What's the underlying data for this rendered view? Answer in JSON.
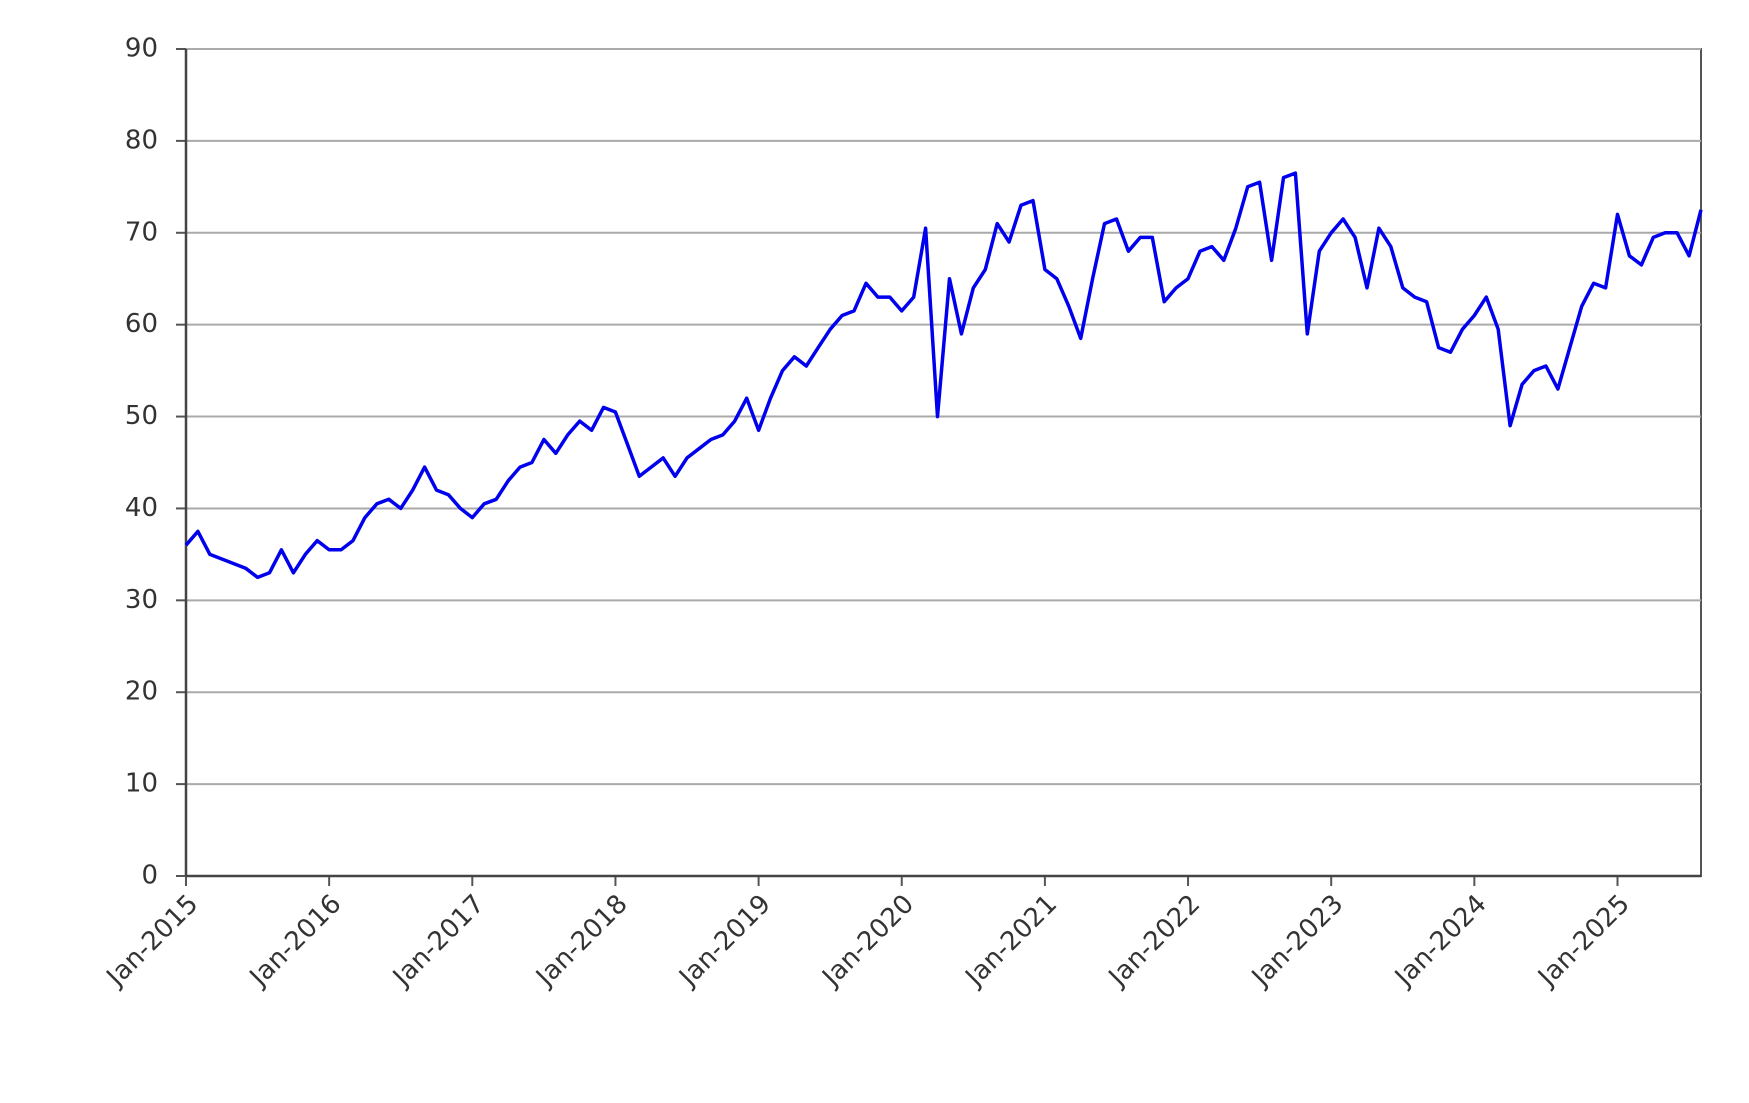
{
  "chart_data": {
    "type": "line",
    "color": "#0000ee",
    "grid": true,
    "x": [
      "2015-01",
      "2015-02",
      "2015-03",
      "2015-04",
      "2015-05",
      "2015-06",
      "2015-07",
      "2015-08",
      "2015-09",
      "2015-10",
      "2015-11",
      "2015-12",
      "2016-01",
      "2016-02",
      "2016-03",
      "2016-04",
      "2016-05",
      "2016-06",
      "2016-07",
      "2016-08",
      "2016-09",
      "2016-10",
      "2016-11",
      "2016-12",
      "2017-01",
      "2017-02",
      "2017-03",
      "2017-04",
      "2017-05",
      "2017-06",
      "2017-07",
      "2017-08",
      "2017-09",
      "2017-10",
      "2017-11",
      "2017-12",
      "2018-01",
      "2018-02",
      "2018-03",
      "2018-04",
      "2018-05",
      "2018-06",
      "2018-07",
      "2018-08",
      "2018-09",
      "2018-10",
      "2018-11",
      "2018-12",
      "2019-01",
      "2019-02",
      "2019-03",
      "2019-04",
      "2019-05",
      "2019-06",
      "2019-07",
      "2019-08",
      "2019-09",
      "2019-10",
      "2019-11",
      "2019-12",
      "2020-01",
      "2020-02",
      "2020-03",
      "2020-04",
      "2020-05",
      "2020-06",
      "2020-07",
      "2020-08",
      "2020-09",
      "2020-10",
      "2020-11",
      "2020-12",
      "2021-01",
      "2021-02",
      "2021-03",
      "2021-04",
      "2021-05",
      "2021-06",
      "2021-07",
      "2021-08",
      "2021-09",
      "2021-10",
      "2021-11",
      "2021-12",
      "2022-01",
      "2022-02",
      "2022-03",
      "2022-04",
      "2022-05",
      "2022-06",
      "2022-07",
      "2022-08",
      "2022-09",
      "2022-10",
      "2022-11",
      "2022-12",
      "2023-01",
      "2023-02",
      "2023-03",
      "2023-04",
      "2023-05",
      "2023-06",
      "2023-07",
      "2023-08",
      "2023-09",
      "2023-10",
      "2023-11",
      "2023-12",
      "2024-01",
      "2024-02",
      "2024-03",
      "2024-04",
      "2024-05",
      "2024-06",
      "2024-07",
      "2024-08",
      "2024-09",
      "2024-10",
      "2024-11",
      "2024-12",
      "2025-01",
      "2025-02",
      "2025-03",
      "2025-04",
      "2025-05",
      "2025-06",
      "2025-07",
      "2025-08"
    ],
    "values": [
      36,
      37.5,
      35,
      34.5,
      34,
      33.5,
      32.5,
      33,
      35.5,
      33,
      35,
      36.5,
      35.5,
      35.5,
      36.5,
      39,
      40.5,
      41,
      40,
      42,
      44.5,
      42,
      41.5,
      40,
      39,
      40.5,
      41,
      43,
      44.5,
      45,
      47.5,
      46,
      48,
      49.5,
      48.5,
      51,
      50.5,
      47,
      43.5,
      44.5,
      45.5,
      43.5,
      45.5,
      46.5,
      47.5,
      48,
      49.5,
      52,
      48.5,
      52,
      55,
      56.5,
      55.5,
      57.5,
      59.5,
      61,
      61.5,
      64.5,
      63,
      63,
      61.5,
      63,
      70.5,
      50,
      65,
      59,
      64,
      66,
      71,
      69,
      73,
      73.5,
      66,
      65,
      62,
      58.5,
      65,
      71,
      71.5,
      68,
      69.5,
      69.5,
      62.5,
      64,
      65,
      68,
      68.5,
      67,
      70.5,
      75,
      75.5,
      67,
      76,
      76.5,
      59,
      68,
      70,
      71.5,
      69.5,
      64,
      70.5,
      68.5,
      64,
      63,
      62.5,
      57.5,
      57,
      59.5,
      61,
      63,
      59.5,
      49,
      53.5,
      55,
      55.5,
      53,
      57.5,
      62,
      64.5,
      64,
      72,
      67.5,
      66.5,
      69.5,
      70,
      70,
      67.5,
      72.5
    ],
    "xlim": [
      "2015-01",
      "2025-08"
    ],
    "xticks": [
      {
        "value": "2015-01",
        "label": "Jan-2015"
      },
      {
        "value": "2016-01",
        "label": "Jan-2016"
      },
      {
        "value": "2017-01",
        "label": "Jan-2017"
      },
      {
        "value": "2018-01",
        "label": "Jan-2018"
      },
      {
        "value": "2019-01",
        "label": "Jan-2019"
      },
      {
        "value": "2020-01",
        "label": "Jan-2020"
      },
      {
        "value": "2021-01",
        "label": "Jan-2021"
      },
      {
        "value": "2022-01",
        "label": "Jan-2022"
      },
      {
        "value": "2023-01",
        "label": "Jan-2023"
      },
      {
        "value": "2024-01",
        "label": "Jan-2024"
      },
      {
        "value": "2025-01",
        "label": "Jan-2025"
      }
    ],
    "ylim": [
      0,
      90
    ],
    "yticks": [
      0,
      10,
      20,
      30,
      40,
      50,
      60,
      70,
      80,
      90
    ]
  }
}
